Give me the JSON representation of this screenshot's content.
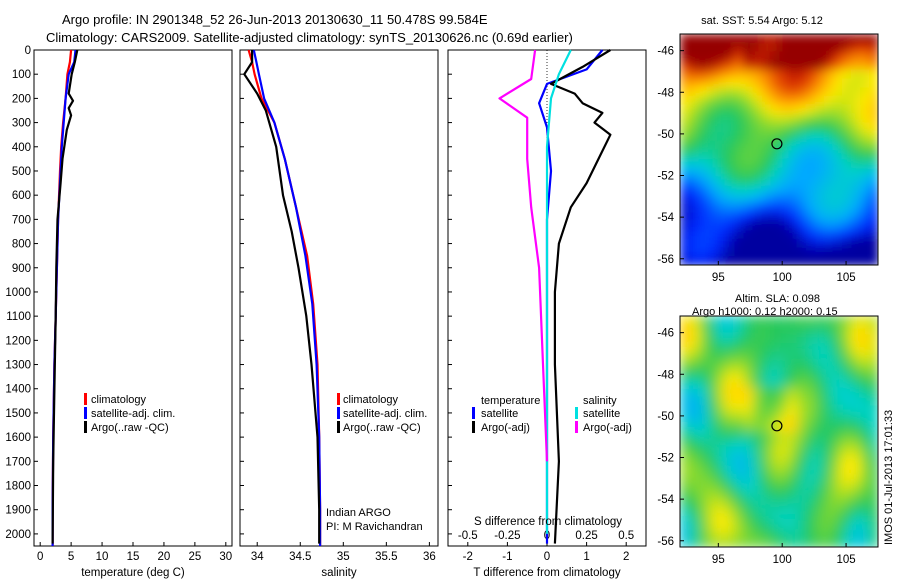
{
  "header": {
    "line1": "Argo profile: IN 2901348_52 26-Jun-2013 20130630_11 50.478S 99.584E",
    "line2": "Climatology: CARS2009. Satellite-adjusted climatology: synTS_20130626.nc (0.69d earlier)"
  },
  "colors": {
    "climatology": "#ff0000",
    "satellite": "#0000ff",
    "argo": "#000000",
    "salinity_satellite": "#00e0e0",
    "salinity_argo": "#ff00ff"
  },
  "chart_data": [
    {
      "id": "temperature",
      "type": "line",
      "xlabel": "temperature (deg C)",
      "ylabel": "",
      "xlim": [
        -1,
        31
      ],
      "ylim": [
        2050,
        0
      ],
      "xticks": [
        "0",
        "5",
        "10",
        "15",
        "20",
        "25",
        "30"
      ],
      "yticks": [
        "0",
        "100",
        "200",
        "300",
        "400",
        "500",
        "600",
        "700",
        "800",
        "900",
        "1000",
        "1100",
        "1200",
        "1300",
        "1400",
        "1500",
        "1600",
        "1700",
        "1800",
        "1900",
        "2000"
      ],
      "legend": [
        "climatology",
        "satellite-adj. clim.",
        "Argo(..raw -QC)"
      ],
      "series": [
        {
          "name": "climatology",
          "color": "#ff0000",
          "x": [
            5.0,
            4.8,
            4.4,
            4.1,
            3.7,
            3.4,
            3.2,
            2.9,
            2.7,
            2.5,
            2.3,
            2.1,
            2.0,
            2.0
          ],
          "y": [
            0,
            50,
            100,
            200,
            300,
            400,
            500,
            700,
            900,
            1100,
            1300,
            1600,
            1900,
            2050
          ]
        },
        {
          "name": "satellite-adj. clim.",
          "color": "#0000ff",
          "x": [
            5.7,
            5.5,
            4.6,
            4.1,
            3.8,
            3.5,
            3.3,
            2.9,
            2.7,
            2.5,
            2.3,
            2.1,
            2.0,
            2.0
          ],
          "y": [
            0,
            50,
            100,
            200,
            300,
            400,
            500,
            700,
            900,
            1100,
            1300,
            1600,
            1900,
            2050
          ]
        },
        {
          "name": "Argo(..raw -QC)",
          "color": "#000000",
          "x": [
            6.0,
            5.6,
            5.1,
            4.6,
            5.3,
            4.6,
            5.0,
            4.3,
            3.6,
            3.3,
            2.8,
            2.6,
            2.5,
            2.3,
            2.1,
            2.0
          ],
          "y": [
            0,
            50,
            100,
            180,
            210,
            240,
            270,
            330,
            450,
            550,
            700,
            900,
            1100,
            1400,
            1700,
            2040
          ]
        }
      ],
      "annotations": []
    },
    {
      "id": "salinity",
      "type": "line",
      "xlabel": "salinity",
      "ylabel": "",
      "xlim": [
        33.8,
        36.1
      ],
      "ylim": [
        2050,
        0
      ],
      "xticks": [
        "34",
        "34.5",
        "35",
        "35.5",
        "36"
      ],
      "legend": [
        "climatology",
        "satellite-adj. clim.",
        "Argo(..raw -QC)"
      ],
      "series": [
        {
          "name": "climatology",
          "color": "#ff0000",
          "x": [
            33.9,
            33.94,
            33.97,
            34.05,
            34.2,
            34.32,
            34.45,
            34.58,
            34.65,
            34.7,
            34.72,
            34.73,
            34.73
          ],
          "y": [
            0,
            50,
            100,
            200,
            300,
            450,
            650,
            850,
            1050,
            1300,
            1600,
            1900,
            2050
          ]
        },
        {
          "name": "satellite-adj. clim.",
          "color": "#0000ff",
          "x": [
            33.96,
            33.99,
            34.02,
            34.08,
            34.2,
            34.32,
            34.45,
            34.56,
            34.64,
            34.69,
            34.72,
            34.73,
            34.73
          ],
          "y": [
            0,
            50,
            100,
            200,
            300,
            450,
            650,
            850,
            1050,
            1300,
            1600,
            1900,
            2050
          ]
        },
        {
          "name": "Argo(..raw -QC)",
          "color": "#000000",
          "x": [
            33.94,
            33.94,
            33.85,
            34.0,
            34.1,
            34.22,
            34.3,
            34.4,
            34.48,
            34.57,
            34.63,
            34.7,
            34.72,
            34.72
          ],
          "y": [
            0,
            50,
            100,
            180,
            250,
            400,
            600,
            750,
            900,
            1100,
            1300,
            1600,
            1900,
            2040
          ]
        }
      ],
      "annotations": [
        "Indian ARGO",
        "PI: M Ravichandran"
      ]
    },
    {
      "id": "difference",
      "type": "line",
      "xlabel": "T difference from climatology",
      "top_label": "S difference from climatology",
      "xlim": [
        -2.5,
        2.5
      ],
      "ylim": [
        2050,
        0
      ],
      "xticks": [
        "-2",
        "-1",
        "0",
        "1",
        "2"
      ],
      "top_ticks": [
        "-0.5",
        "-0.25",
        "0",
        "0.25",
        "0.5"
      ],
      "legend_headers": [
        "temperature",
        "salinity"
      ],
      "legend": [
        "satellite",
        "Argo(-adj)",
        "satellite",
        "Argo(-adj)"
      ],
      "series": [
        {
          "name": "temperature satellite",
          "color": "#0000ff",
          "x": [
            1.4,
            1.0,
            0.0,
            -0.2,
            0.0,
            0.1,
            0.0,
            0.0,
            0.0,
            0.0,
            0.0
          ],
          "y": [
            0,
            80,
            140,
            220,
            320,
            500,
            700,
            1000,
            1400,
            1800,
            2040
          ]
        },
        {
          "name": "temperature Argo(-adj)",
          "color": "#000000",
          "x": [
            1.6,
            0.9,
            0.1,
            0.7,
            0.9,
            1.4,
            1.2,
            1.6,
            1.3,
            1.0,
            0.6,
            0.3,
            0.2,
            0.2,
            0.3,
            0.2
          ],
          "y": [
            0,
            70,
            140,
            180,
            220,
            260,
            300,
            350,
            450,
            550,
            650,
            800,
            1000,
            1300,
            1700,
            2040
          ]
        },
        {
          "name": "salinity satellite",
          "color": "#00e0e0",
          "x": [
            0.6,
            0.3,
            0.1,
            0.0,
            0.0,
            0.0,
            0.0,
            0.0
          ],
          "y": [
            0,
            100,
            200,
            400,
            700,
            1000,
            1500,
            2000
          ]
        },
        {
          "name": "salinity Argo(-adj)",
          "color": "#ff00ff",
          "x": [
            -0.3,
            -0.4,
            -1.2,
            -0.5,
            -0.5,
            -0.4,
            -0.2,
            -0.1,
            0.0
          ],
          "y": [
            0,
            120,
            200,
            280,
            450,
            650,
            900,
            1300,
            1700
          ]
        }
      ]
    },
    {
      "id": "sst_map",
      "type": "heatmap",
      "title": "sat. SST: 5.54 Argo: 5.12",
      "xlim": [
        92,
        107.5
      ],
      "ylim": [
        -56.3,
        -45.2
      ],
      "xticks": [
        "95",
        "100",
        "105"
      ],
      "yticks": [
        "-46",
        "-48",
        "-50",
        "-52",
        "-54",
        "-56"
      ],
      "marker": {
        "lon": 99.584,
        "lat": -50.478
      }
    },
    {
      "id": "sla_map",
      "type": "heatmap",
      "title_line1": "Altim. SLA: 0.098",
      "title_line2": "Argo h1000: 0.12 h2000: 0.15",
      "xlim": [
        92,
        107.5
      ],
      "ylim": [
        -56.3,
        -45.2
      ],
      "xticks": [
        "95",
        "100",
        "105"
      ],
      "yticks": [
        "-46",
        "-48",
        "-50",
        "-52",
        "-54",
        "-56"
      ],
      "marker": {
        "lon": 99.584,
        "lat": -50.478
      }
    }
  ],
  "footer": {
    "stamp": "IMOS 01-Jul-2013 17:01:33"
  }
}
